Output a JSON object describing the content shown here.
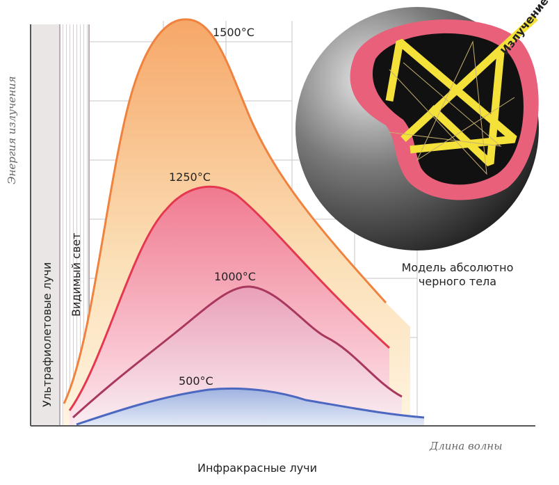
{
  "axes": {
    "y_label": "Энергия излучения",
    "x_label": "Длина волны"
  },
  "bands": {
    "ultraviolet": "Ультрафиолетовые лучи",
    "visible": "Видимый свет",
    "infrared": "Инфракрасные лучи"
  },
  "curves": [
    {
      "label": "1500°C"
    },
    {
      "label": "1250°C"
    },
    {
      "label": "1000°C"
    },
    {
      "label": "500°C"
    }
  ],
  "model": {
    "ray_label": "Излучение",
    "caption": [
      "Модель абсолютно",
      "черного тела"
    ]
  }
}
